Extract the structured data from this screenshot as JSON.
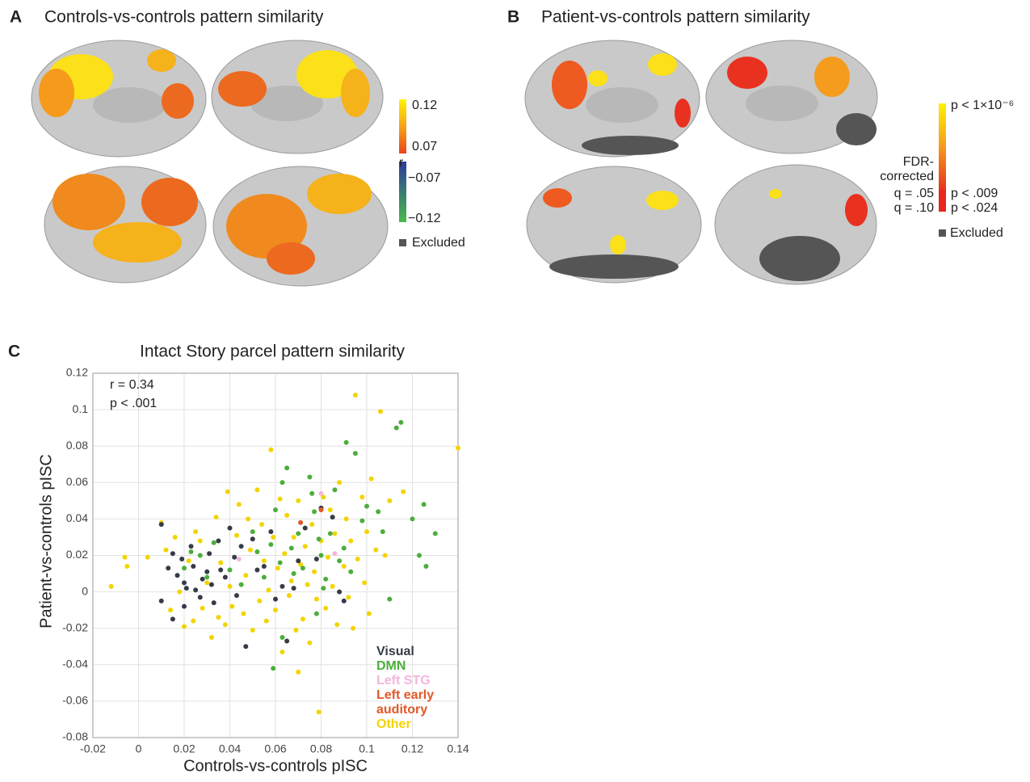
{
  "panel_a": {
    "label": "A",
    "title": "Controls-vs-controls pattern similarity",
    "colorbar_labels": [
      "0.12",
      "0.07",
      "−0.07",
      "−0.12"
    ],
    "colorbar_title": "r",
    "excluded": "Excluded"
  },
  "panel_b": {
    "label": "B",
    "title": "Patient-vs-controls pattern similarity",
    "colorbar_top": "p < 1×10⁻⁶",
    "colorbar_title": [
      "FDR-",
      "corrected"
    ],
    "thresholds": [
      [
        "q = .05",
        "p < .009"
      ],
      [
        "q = .10",
        "p < .024"
      ]
    ],
    "excluded": "Excluded"
  },
  "chart_data": {
    "label": "C",
    "type": "scatter",
    "title": "Intact Story parcel pattern similarity",
    "xlabel": "Controls-vs-controls pISC",
    "ylabel": "Patient-vs-controls pISC",
    "annotations": [
      "r = 0.34",
      "p < .001"
    ],
    "xlim": [
      -0.02,
      0.14
    ],
    "ylim": [
      -0.08,
      0.12
    ],
    "xticks": [
      -0.02,
      0,
      0.02,
      0.04,
      0.06,
      0.08,
      0.1,
      0.12,
      0.14
    ],
    "yticks": [
      -0.08,
      -0.06,
      -0.04,
      -0.02,
      0,
      0.02,
      0.04,
      0.06,
      0.08,
      0.1,
      0.12
    ],
    "grid": true,
    "legend": "lower right",
    "series": [
      {
        "name": "Other",
        "color": "#f3d400",
        "x": [
          -0.012,
          -0.006,
          -0.005,
          0.004,
          0.01,
          0.012,
          0.014,
          0.016,
          0.018,
          0.02,
          0.022,
          0.024,
          0.025,
          0.027,
          0.028,
          0.03,
          0.032,
          0.034,
          0.035,
          0.036,
          0.038,
          0.039,
          0.04,
          0.041,
          0.043,
          0.044,
          0.046,
          0.047,
          0.048,
          0.049,
          0.05,
          0.052,
          0.053,
          0.054,
          0.055,
          0.056,
          0.057,
          0.058,
          0.059,
          0.06,
          0.061,
          0.062,
          0.063,
          0.064,
          0.065,
          0.066,
          0.067,
          0.068,
          0.069,
          0.07,
          0.07,
          0.071,
          0.072,
          0.073,
          0.074,
          0.075,
          0.076,
          0.077,
          0.078,
          0.079,
          0.08,
          0.081,
          0.082,
          0.083,
          0.084,
          0.085,
          0.086,
          0.087,
          0.088,
          0.09,
          0.091,
          0.092,
          0.093,
          0.094,
          0.095,
          0.096,
          0.098,
          0.099,
          0.1,
          0.101,
          0.102,
          0.104,
          0.106,
          0.108,
          0.11,
          0.116,
          0.14
        ],
        "values": [
          0.003,
          0.019,
          0.014,
          0.019,
          0.038,
          0.023,
          -0.01,
          0.03,
          0.0,
          -0.019,
          0.017,
          -0.016,
          0.033,
          0.028,
          -0.009,
          0.005,
          -0.025,
          0.041,
          -0.014,
          0.016,
          -0.018,
          0.055,
          0.003,
          -0.008,
          0.031,
          0.048,
          -0.012,
          0.009,
          0.04,
          0.023,
          -0.021,
          0.056,
          -0.005,
          0.037,
          0.017,
          -0.016,
          0.001,
          0.078,
          0.03,
          -0.01,
          0.013,
          0.051,
          -0.033,
          0.021,
          0.042,
          -0.002,
          0.006,
          0.03,
          -0.021,
          0.05,
          -0.044,
          0.015,
          -0.015,
          0.025,
          0.004,
          -0.028,
          0.037,
          0.011,
          -0.004,
          -0.066,
          0.028,
          0.052,
          -0.009,
          0.019,
          0.045,
          0.003,
          0.032,
          -0.018,
          0.06,
          0.014,
          0.04,
          -0.003,
          0.028,
          -0.02,
          0.108,
          0.018,
          0.052,
          0.005,
          0.033,
          -0.012,
          0.062,
          0.023,
          0.099,
          0.02,
          0.05,
          0.055,
          0.079
        ]
      },
      {
        "name": "DMN",
        "color": "#4cae3c",
        "x": [
          0.02,
          0.023,
          0.027,
          0.03,
          0.033,
          0.04,
          0.045,
          0.05,
          0.052,
          0.055,
          0.058,
          0.06,
          0.062,
          0.063,
          0.065,
          0.067,
          0.068,
          0.07,
          0.072,
          0.075,
          0.076,
          0.077,
          0.079,
          0.08,
          0.082,
          0.084,
          0.086,
          0.088,
          0.09,
          0.091,
          0.093,
          0.095,
          0.098,
          0.1,
          0.105,
          0.107,
          0.11,
          0.113,
          0.115,
          0.12,
          0.123,
          0.125,
          0.126,
          0.13,
          0.059,
          0.063,
          0.078,
          0.081
        ],
        "values": [
          0.013,
          0.022,
          0.02,
          0.008,
          0.027,
          0.012,
          0.004,
          0.033,
          0.022,
          0.008,
          0.026,
          0.045,
          0.016,
          0.06,
          0.068,
          0.024,
          0.01,
          0.032,
          0.013,
          0.063,
          0.054,
          0.044,
          0.029,
          0.02,
          0.007,
          0.032,
          0.056,
          0.017,
          0.024,
          0.082,
          0.011,
          0.076,
          0.039,
          0.047,
          0.044,
          0.033,
          -0.004,
          0.09,
          0.093,
          0.04,
          0.02,
          0.048,
          0.014,
          0.032,
          -0.042,
          -0.025,
          -0.012,
          0.002
        ]
      },
      {
        "name": "Visual",
        "color": "#353b47",
        "x": [
          0.01,
          0.013,
          0.015,
          0.017,
          0.019,
          0.02,
          0.021,
          0.023,
          0.024,
          0.025,
          0.027,
          0.028,
          0.03,
          0.031,
          0.032,
          0.033,
          0.035,
          0.036,
          0.038,
          0.04,
          0.042,
          0.043,
          0.045,
          0.047,
          0.05,
          0.052,
          0.055,
          0.058,
          0.06,
          0.063,
          0.065,
          0.068,
          0.07,
          0.073,
          0.078,
          0.08,
          0.085,
          0.088,
          0.09,
          0.01,
          0.015,
          0.02
        ],
        "values": [
          0.037,
          0.013,
          0.021,
          0.009,
          0.018,
          0.005,
          0.002,
          0.025,
          0.014,
          0.001,
          -0.003,
          0.007,
          0.011,
          0.021,
          0.004,
          -0.006,
          0.028,
          0.012,
          0.008,
          0.035,
          0.019,
          -0.002,
          0.025,
          -0.03,
          0.029,
          0.012,
          0.014,
          0.033,
          -0.004,
          0.003,
          -0.027,
          0.002,
          0.017,
          0.035,
          0.018,
          0.046,
          0.041,
          0.0,
          -0.005,
          -0.005,
          -0.015,
          -0.008
        ]
      },
      {
        "name": "Left STG",
        "color": "#f2b6dc",
        "x": [
          0.08,
          0.086,
          0.044
        ],
        "values": [
          0.054,
          0.021,
          0.018
        ]
      },
      {
        "name": "Left early auditory",
        "color": "#e0582a",
        "x": [
          0.071,
          0.08
        ],
        "values": [
          0.038,
          0.045
        ]
      }
    ]
  }
}
